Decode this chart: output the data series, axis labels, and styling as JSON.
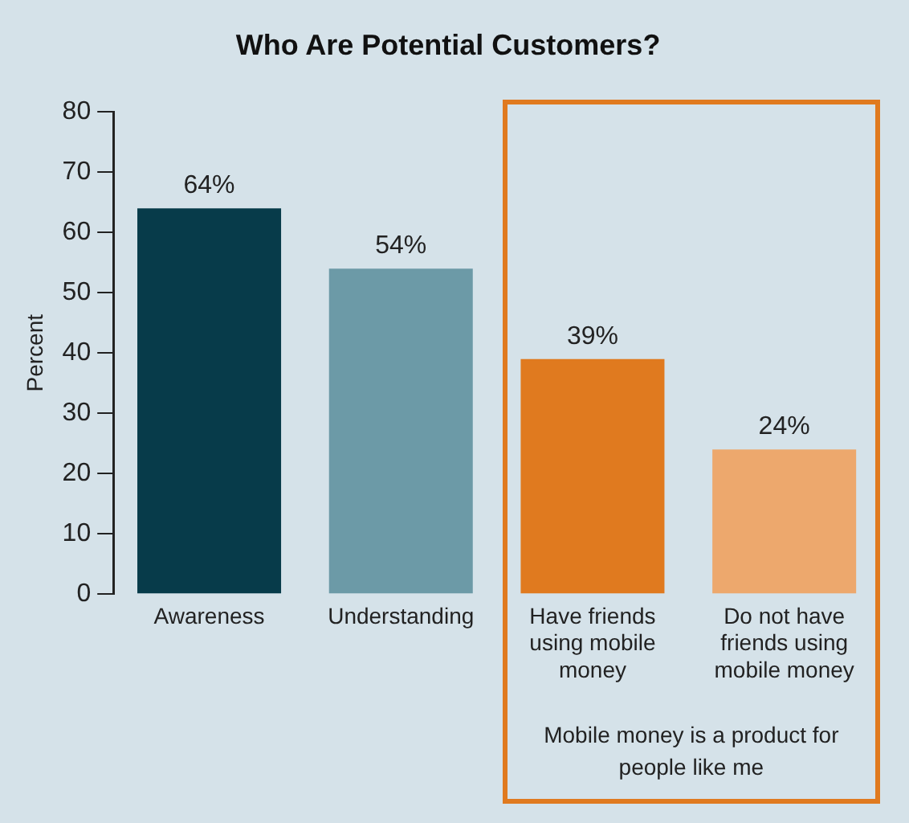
{
  "chart_data": {
    "type": "bar",
    "title": "Who Are Potential Customers?",
    "ylabel": "Percent",
    "categories": [
      "Awareness",
      "Understanding",
      "Have friends using mobile money",
      "Do not have friends using mobile money"
    ],
    "values": [
      64,
      54,
      39,
      24
    ],
    "colors": [
      "#073b4a",
      "#6c9aa7",
      "#e07a1f",
      "#eda86d"
    ],
    "value_labels": [
      "64%",
      "54%",
      "39%",
      "24%"
    ],
    "ylim": [
      0,
      80
    ],
    "yticks": [
      0,
      10,
      20,
      30,
      40,
      50,
      60,
      70,
      80
    ],
    "grid": false,
    "legend": false,
    "annotations": [
      "Mobile money is a product for people like me"
    ]
  }
}
